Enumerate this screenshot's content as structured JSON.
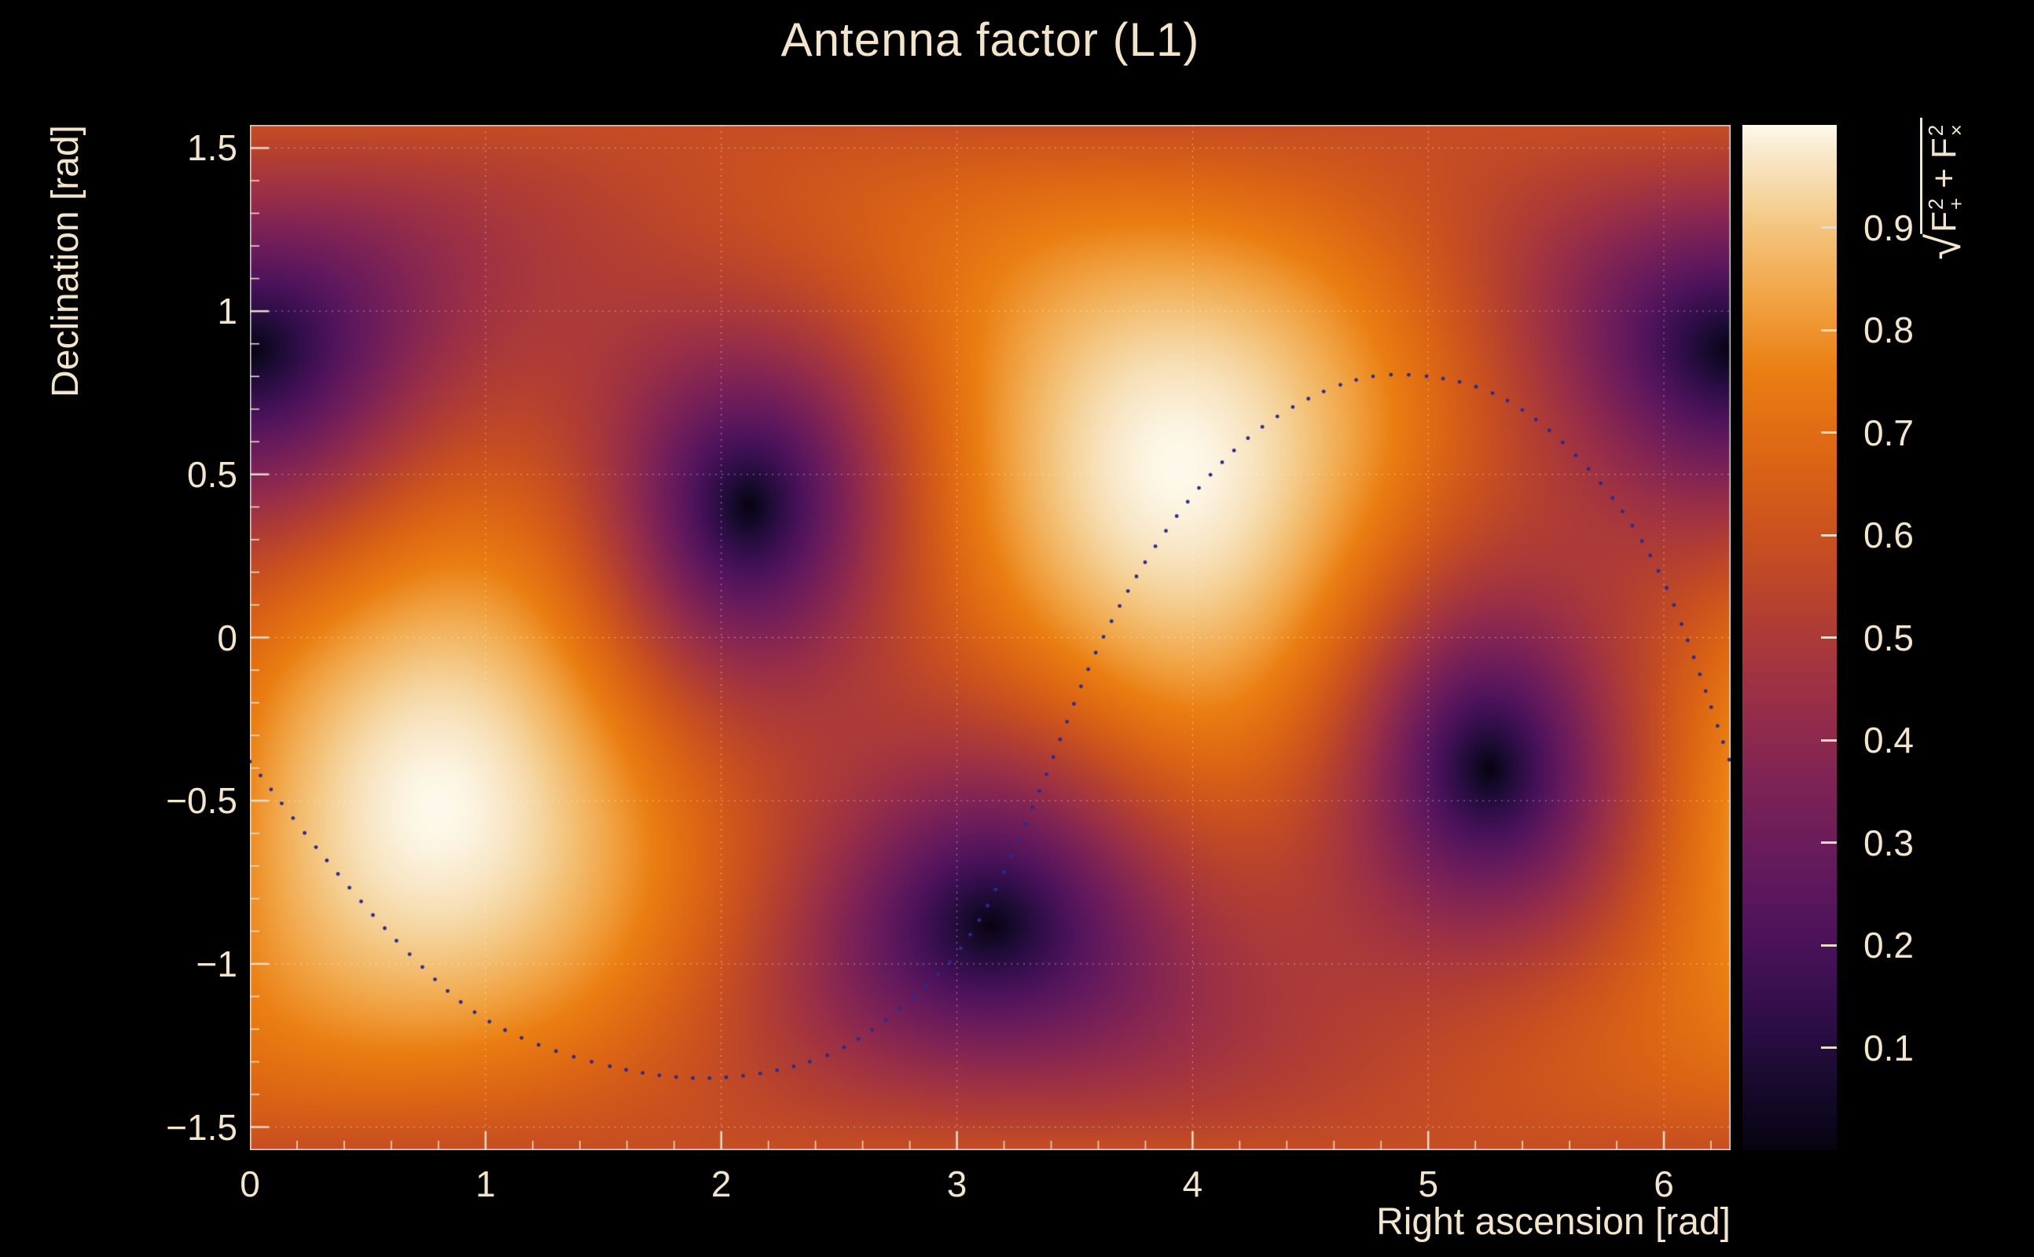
{
  "title": "Antenna factor (L1)",
  "colors": {
    "background": "#000000",
    "text": "#f3e5cb",
    "axis": "#e6dcc6",
    "grid": "#ffffff",
    "frame": "#e8e8e8",
    "track_dot": "#2b2b8c"
  },
  "zlabel": {
    "sqrt": "√",
    "f": "F",
    "sup": "2",
    "sub_plus": "+",
    "plus": "+",
    "sub_cross": "×"
  },
  "axes": {
    "x": {
      "title": "Right ascension [rad]",
      "min": 0,
      "max": 6.28319,
      "minor_step": 0.2,
      "majors": [
        {
          "v": 0,
          "label": "0"
        },
        {
          "v": 1,
          "label": "1"
        },
        {
          "v": 2,
          "label": "2"
        },
        {
          "v": 3,
          "label": "3"
        },
        {
          "v": 4,
          "label": "4"
        },
        {
          "v": 5,
          "label": "5"
        },
        {
          "v": 6,
          "label": "6"
        }
      ]
    },
    "y": {
      "title": "Declination [rad]",
      "min": -1.5708,
      "max": 1.5708,
      "minor_step": 0.1,
      "majors": [
        {
          "v": 1.5,
          "label": "1.5"
        },
        {
          "v": 1,
          "label": "1"
        },
        {
          "v": 0.5,
          "label": "0.5"
        },
        {
          "v": 0,
          "label": "0"
        },
        {
          "v": -0.5,
          "label": "−0.5"
        },
        {
          "v": -1,
          "label": "−1"
        },
        {
          "v": -1.5,
          "label": "−1.5"
        }
      ]
    },
    "z": {
      "min": 0,
      "max": 1,
      "majors": [
        {
          "v": 0.1,
          "label": "0.1"
        },
        {
          "v": 0.2,
          "label": "0.2"
        },
        {
          "v": 0.3,
          "label": "0.3"
        },
        {
          "v": 0.4,
          "label": "0.4"
        },
        {
          "v": 0.5,
          "label": "0.5"
        },
        {
          "v": 0.6,
          "label": "0.6"
        },
        {
          "v": 0.7,
          "label": "0.7"
        },
        {
          "v": 0.8,
          "label": "0.8"
        },
        {
          "v": 0.9,
          "label": "0.9"
        }
      ]
    }
  },
  "chart_data": {
    "type": "heatmap",
    "title": "Antenna factor (L1)",
    "xlabel": "Right ascension [rad]",
    "ylabel": "Declination [rad]",
    "zlabel": "sqrt(F+^2 + Fx^2)",
    "x_range": [
      0,
      6.28319
    ],
    "y_range": [
      -1.5708,
      1.5708
    ],
    "z_range": [
      0,
      1
    ],
    "grid": "dotted white gridlines at major ticks",
    "legend_position": "right vertical colorbar",
    "model": "psi-independent rms antenna pattern of a single interferometer, F(ra,dec) = sqrt(Fplus^2 + Fcross^2); equals 1 at detector zenith/nadir, 0 at the four horizon nulls, 0.5 along the arm-aligned horizon",
    "nulls": [
      [
        2.12,
        0.4
      ],
      [
        0.0,
        0.88
      ],
      [
        5.26,
        -0.4
      ],
      [
        3.14,
        -0.88
      ]
    ],
    "maxima": [
      [
        3.94,
        0.52
      ],
      [
        0.79,
        -0.52
      ]
    ],
    "background_value_horizon": 0.5,
    "palette": [
      [
        0.0,
        "#080310"
      ],
      [
        0.06,
        "#160a2c"
      ],
      [
        0.12,
        "#2c0d45"
      ],
      [
        0.2,
        "#4a1259"
      ],
      [
        0.28,
        "#651a5c"
      ],
      [
        0.36,
        "#7f2355"
      ],
      [
        0.44,
        "#9a2f47"
      ],
      [
        0.52,
        "#b23e33"
      ],
      [
        0.6,
        "#ca511f"
      ],
      [
        0.68,
        "#dd6614"
      ],
      [
        0.76,
        "#ea7e12"
      ],
      [
        0.83,
        "#f1a343"
      ],
      [
        0.89,
        "#f3c075"
      ],
      [
        0.94,
        "#f6d9a8"
      ],
      [
        0.98,
        "#faecd2"
      ],
      [
        1.0,
        "#fdf9ea"
      ]
    ],
    "track": {
      "style": "dotted",
      "points": [
        [
          0.0,
          -0.38
        ],
        [
          0.3,
          -0.66
        ],
        [
          0.65,
          -0.95
        ],
        [
          1.0,
          -1.17
        ],
        [
          1.45,
          -1.3
        ],
        [
          1.95,
          -1.35
        ],
        [
          2.45,
          -1.28
        ],
        [
          2.85,
          -1.08
        ],
        [
          3.1,
          -0.86
        ],
        [
          3.35,
          -0.47
        ],
        [
          3.6,
          -0.03
        ],
        [
          3.9,
          0.34
        ],
        [
          4.25,
          0.62
        ],
        [
          4.65,
          0.78
        ],
        [
          5.0,
          0.8
        ],
        [
          5.35,
          0.72
        ],
        [
          5.7,
          0.5
        ],
        [
          6.0,
          0.17
        ],
        [
          6.28,
          -0.38
        ]
      ]
    }
  }
}
